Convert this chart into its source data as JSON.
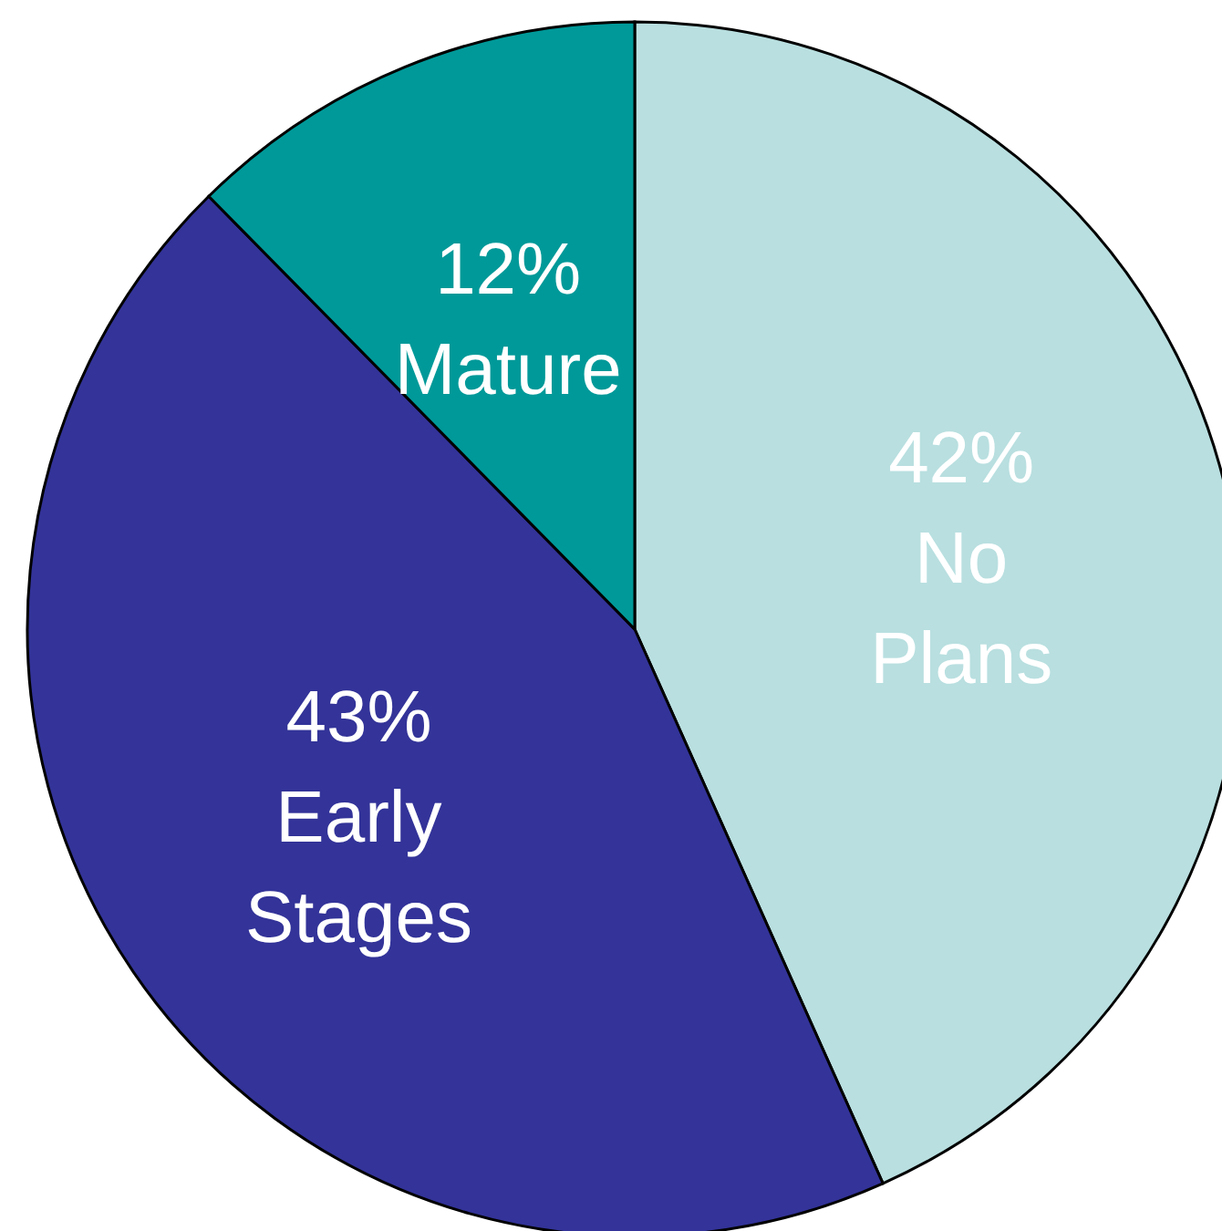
{
  "chart_data": {
    "type": "pie",
    "categories": [
      "No Plans",
      "Early Stages",
      "Mature"
    ],
    "values": [
      42,
      43,
      12
    ],
    "value_labels": [
      "42%",
      "43%",
      "12%"
    ],
    "colors": [
      "#b9dfe0",
      "#333399",
      "#009999"
    ]
  }
}
